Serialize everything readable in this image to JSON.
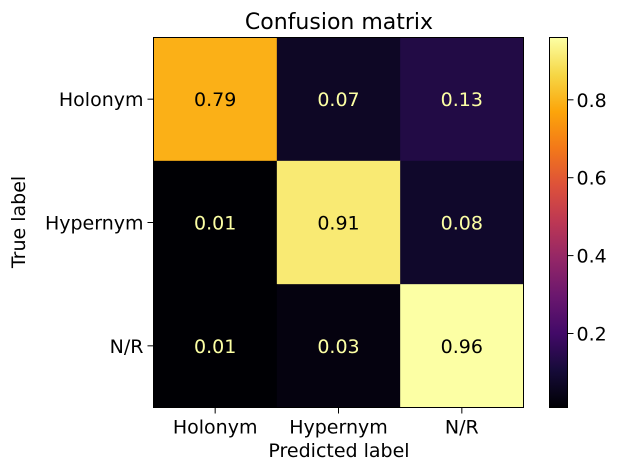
{
  "chart_data": {
    "type": "heatmap",
    "title": "Confusion matrix",
    "xlabel": "Predicted label",
    "ylabel": "True label",
    "x_categories": [
      "Holonym",
      "Hypernym",
      "N/R"
    ],
    "y_categories": [
      "Holonym",
      "Hypernym",
      "N/R"
    ],
    "values": [
      [
        0.79,
        0.07,
        0.13
      ],
      [
        0.01,
        0.91,
        0.08
      ],
      [
        0.01,
        0.03,
        0.96
      ]
    ],
    "value_labels": [
      [
        "0.79",
        "0.07",
        "0.13"
      ],
      [
        "0.01",
        "0.91",
        "0.08"
      ],
      [
        "0.01",
        "0.03",
        "0.96"
      ]
    ],
    "colormap": "inferno",
    "colorbar": {
      "range": [
        0.01,
        0.96
      ],
      "ticks": [
        0.2,
        0.4,
        0.6,
        0.8
      ],
      "tick_labels": [
        "0.2",
        "0.4",
        "0.6",
        "0.8"
      ]
    },
    "text_colors": {
      "on_dark": "#fcffa4",
      "on_light": "#000000"
    }
  }
}
